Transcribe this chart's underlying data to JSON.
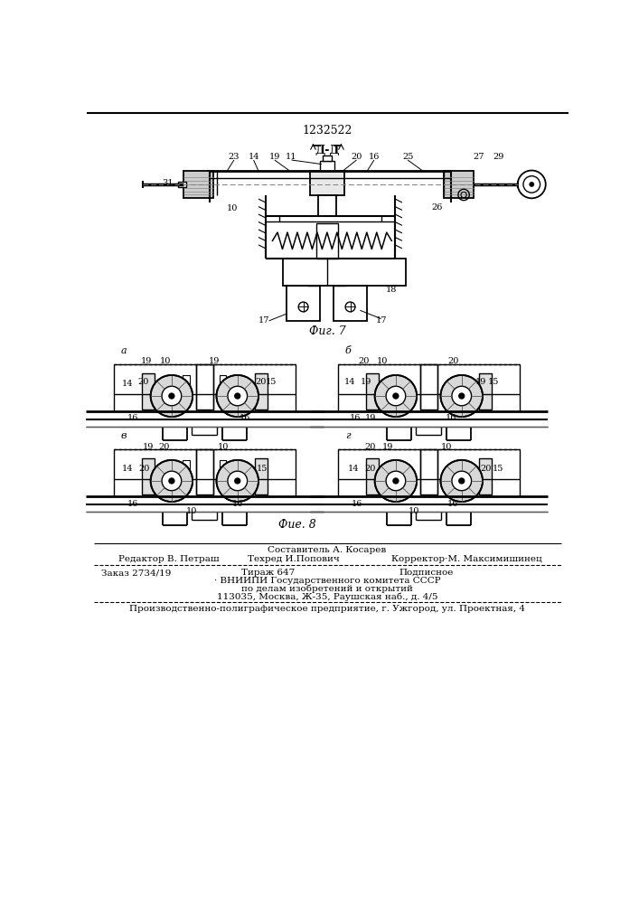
{
  "patent_number": "1232522",
  "fig7_label": "Д-Д",
  "fig7_caption": "Фиг. 7",
  "fig8_caption": "Фие. 8",
  "background_color": "#ffffff",
  "line_color": "#000000",
  "footer_line0_center": "Составитель А. Косарев",
  "footer_line1_left": "Редактор В. Петраш",
  "footer_line1_center": "Техред И.Попович",
  "footer_line1_right": "Корректор·М. Максимишинец",
  "footer_line2_left": "Заказ 2734/19",
  "footer_line2_center": "Тираж 647",
  "footer_line2_right": "Подписное",
  "footer_line3": "· ВНИИПИ Государственного комитета СССР",
  "footer_line4": "по делам изобретений и открытий",
  "footer_line5": "113035, Москва, Ж-35, Раушская наб., д. 4/5",
  "footer_line6": "Производственно-полиграфическое предприятие, г. Ужгород, ул. Проектная, 4"
}
